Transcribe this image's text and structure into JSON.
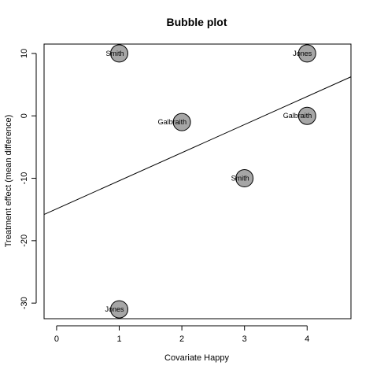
{
  "chart_data": {
    "type": "scatter",
    "title": "Bubble plot",
    "xlabel": "Covariate Happy",
    "ylabel": "Treatment effect (mean difference)",
    "xlim": [
      -0.2,
      4.7
    ],
    "ylim": [
      -32.5,
      11.5
    ],
    "xticks": [
      0,
      1,
      2,
      3,
      4
    ],
    "yticks": [
      -30,
      -20,
      -10,
      0,
      10
    ],
    "xtick_labels": [
      "0",
      "1",
      "2",
      "3",
      "4"
    ],
    "ytick_labels": [
      "-30",
      "-20",
      "-10",
      "0",
      "10"
    ],
    "grid": false,
    "legend": null,
    "points": [
      {
        "x": 1,
        "y": 10,
        "label": "Smith"
      },
      {
        "x": 4,
        "y": 10,
        "label": "Jones"
      },
      {
        "x": 2,
        "y": -1,
        "label": "Galbraith"
      },
      {
        "x": 4,
        "y": 0,
        "label": "Galbraith"
      },
      {
        "x": 3,
        "y": -10,
        "label": "Smith"
      },
      {
        "x": 1,
        "y": -31,
        "label": "Jones"
      }
    ],
    "regression_line": {
      "intercept": -14.9,
      "slope": 4.5
    },
    "bubble_fill": "#a6a6a6",
    "bubble_stroke": "#000000"
  }
}
